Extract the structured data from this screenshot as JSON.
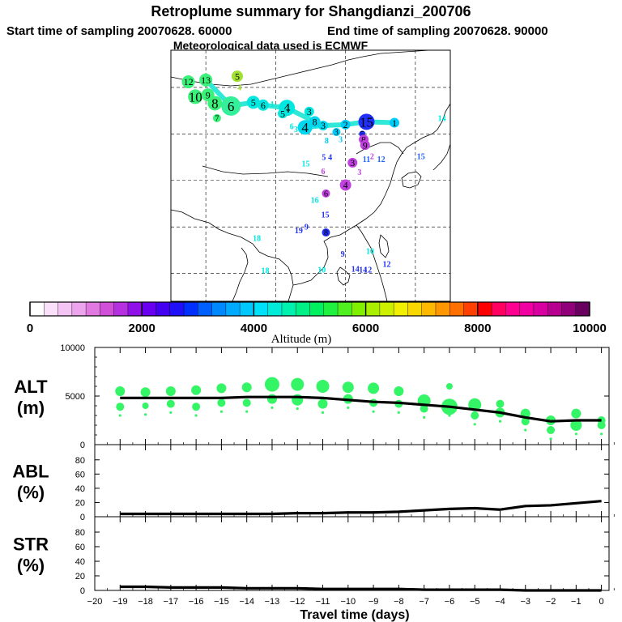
{
  "header": {
    "title": "Retroplume summary for Shangdianzi_200706",
    "start_label": "Start time of sampling 20070628. 60000",
    "end_label": "End time of sampling 20070628. 90000",
    "met_label": "Meteorological data used is ECMWF"
  },
  "colorbar": {
    "label": "Altitude (m)",
    "ticks": [
      "0",
      "2000",
      "4000",
      "6000",
      "8000",
      "10000"
    ],
    "colors": [
      "#ffffff",
      "#fbe0fb",
      "#f4c4f4",
      "#eca4ec",
      "#e07ae0",
      "#d050d8",
      "#b430e0",
      "#9010e8",
      "#6a00f0",
      "#4400f0",
      "#2010f8",
      "#0030ff",
      "#0060ff",
      "#0088ff",
      "#00aaff",
      "#00c8ff",
      "#00e0f8",
      "#00ecd8",
      "#00f0b0",
      "#00f088",
      "#00f060",
      "#20f040",
      "#50f020",
      "#80f000",
      "#a8f000",
      "#ccf000",
      "#f0f000",
      "#f8d800",
      "#ffb800",
      "#ff9800",
      "#ff7000",
      "#ff4000",
      "#ff0000",
      "#ff0060",
      "#ff0090",
      "#f000a0",
      "#d800a0",
      "#b80090",
      "#900078",
      "#6a0060"
    ]
  },
  "map": {
    "markers": [
      {
        "label": "12",
        "c": "#3af27a",
        "lat": 45.6,
        "lon": 77.5,
        "r": 8
      },
      {
        "label": "13",
        "c": "#3af27a",
        "lat": 45.8,
        "lon": 80.0,
        "r": 8
      },
      {
        "label": "10",
        "c": "#3af27a",
        "lat": 44.0,
        "lon": 78.5,
        "r": 9
      },
      {
        "label": "9",
        "c": "#3af27a",
        "lat": 44.2,
        "lon": 80.3,
        "r": 8
      },
      {
        "label": "8",
        "c": "#3af27a",
        "lat": 43.3,
        "lon": 81.3,
        "r": 9
      },
      {
        "label": "6",
        "c": "#34f09a",
        "lat": 43.0,
        "lon": 83.6,
        "r": 12
      },
      {
        "label": "7",
        "c": "#3af27a",
        "lat": 41.7,
        "lon": 81.6,
        "r": 5
      },
      {
        "label": "5",
        "c": "#9fe030",
        "lat": 46.2,
        "lon": 84.5,
        "r": 7
      },
      {
        "label": "4",
        "c": "#9fe030",
        "lat": 45.0,
        "lon": 84.8,
        "r": 0
      },
      {
        "label": "5",
        "c": "#00e8e0",
        "lat": 43.4,
        "lon": 86.8,
        "r": 8
      },
      {
        "label": "6",
        "c": "#00e8e0",
        "lat": 43.1,
        "lon": 88.2,
        "r": 7
      },
      {
        "label": "1",
        "c": "#00e8e0",
        "lat": 43.2,
        "lon": 89.5,
        "r": 0
      },
      {
        "label": "4",
        "c": "#00e8e0",
        "lat": 42.8,
        "lon": 91.6,
        "r": 10
      },
      {
        "label": "5",
        "c": "#00e8e0",
        "lat": 42.2,
        "lon": 91.0,
        "r": 6
      },
      {
        "label": "3",
        "c": "#00e8e0",
        "lat": 42.4,
        "lon": 94.8,
        "r": 6
      },
      {
        "label": "8",
        "c": "#00d8f0",
        "lat": 41.3,
        "lon": 95.6,
        "r": 7
      },
      {
        "label": "6",
        "c": "#00e8e0",
        "lat": 40.8,
        "lon": 92.3,
        "r": 0
      },
      {
        "label": "3",
        "c": "#00e8e0",
        "lat": 40.5,
        "lon": 92.9,
        "r": 0
      },
      {
        "label": "4",
        "c": "#00d8f0",
        "lat": 40.7,
        "lon": 94.2,
        "r": 9
      },
      {
        "label": "3",
        "c": "#00d8f0",
        "lat": 40.9,
        "lon": 96.8,
        "r": 6
      },
      {
        "label": "2",
        "c": "#00ccf8",
        "lat": 41.0,
        "lon": 100.0,
        "r": 6
      },
      {
        "label": "3",
        "c": "#00ccf8",
        "lat": 40.2,
        "lon": 98.7,
        "r": 5
      },
      {
        "label": "3",
        "c": "#00ccf8",
        "lat": 39.4,
        "lon": 99.3,
        "r": 0
      },
      {
        "label": "8",
        "c": "#00ccf8",
        "lat": 39.3,
        "lon": 97.3,
        "r": 0
      },
      {
        "label": "15",
        "c": "#2030f8",
        "lat": 41.3,
        "lon": 103.0,
        "r": 10
      },
      {
        "label": "1",
        "c": "#00ccf8",
        "lat": 41.2,
        "lon": 107.0,
        "r": 6
      },
      {
        "label": "14",
        "c": "#00e8e0",
        "lat": 41.7,
        "lon": 113.8,
        "r": 0
      },
      {
        "label": "5",
        "c": "#2030f8",
        "lat": 40.0,
        "lon": 102.4,
        "r": 4
      },
      {
        "label": "8",
        "c": "#c040e0",
        "lat": 39.4,
        "lon": 102.6,
        "r": 6
      },
      {
        "label": "9",
        "c": "#c040e0",
        "lat": 38.8,
        "lon": 102.8,
        "r": 6
      },
      {
        "label": "2",
        "c": "#c040e0",
        "lat": 37.6,
        "lon": 103.8,
        "r": 0
      },
      {
        "label": "11",
        "c": "#2060ff",
        "lat": 37.3,
        "lon": 103.0,
        "r": 0
      },
      {
        "label": "12",
        "c": "#2060ff",
        "lat": 37.3,
        "lon": 105.1,
        "r": 0
      },
      {
        "label": "15",
        "c": "#2060ff",
        "lat": 37.6,
        "lon": 110.8,
        "r": 0
      },
      {
        "label": "15",
        "c": "#00e8e0",
        "lat": 36.8,
        "lon": 94.3,
        "r": 0
      },
      {
        "label": "5",
        "c": "#2030f8",
        "lat": 37.5,
        "lon": 96.9,
        "r": 0
      },
      {
        "label": "4",
        "c": "#2030f8",
        "lat": 37.5,
        "lon": 97.8,
        "r": 0
      },
      {
        "label": "3",
        "c": "#c040e0",
        "lat": 36.9,
        "lon": 101.0,
        "r": 6
      },
      {
        "label": "3",
        "c": "#c040e0",
        "lat": 35.9,
        "lon": 102.0,
        "r": 0
      },
      {
        "label": "4",
        "c": "#c040e0",
        "lat": 34.5,
        "lon": 100.0,
        "r": 7
      },
      {
        "label": "6",
        "c": "#c040e0",
        "lat": 36.0,
        "lon": 96.8,
        "r": 0
      },
      {
        "label": "6",
        "c": "#c040e0",
        "lat": 33.6,
        "lon": 97.2,
        "r": 5
      },
      {
        "label": "16",
        "c": "#00e8e0",
        "lat": 32.9,
        "lon": 95.6,
        "r": 0
      },
      {
        "label": "15",
        "c": "#2030f8",
        "lat": 31.3,
        "lon": 97.1,
        "r": 0
      },
      {
        "label": "19",
        "c": "#2030f8",
        "lat": 29.6,
        "lon": 93.3,
        "r": 0
      },
      {
        "label": "9",
        "c": "#2030f8",
        "lat": 30.0,
        "lon": 94.4,
        "r": 0
      },
      {
        "label": "8",
        "c": "#2030f8",
        "lat": 29.4,
        "lon": 97.2,
        "r": 5
      },
      {
        "label": "18",
        "c": "#00e8e0",
        "lat": 28.8,
        "lon": 87.3,
        "r": 0
      },
      {
        "label": "18",
        "c": "#00e8e0",
        "lat": 25.3,
        "lon": 88.5,
        "r": 0
      },
      {
        "label": "10",
        "c": "#00e8e0",
        "lat": 25.4,
        "lon": 96.6,
        "r": 0
      },
      {
        "label": "9",
        "c": "#2030f8",
        "lat": 27.1,
        "lon": 99.6,
        "r": 0
      },
      {
        "label": "10",
        "c": "#00e8e0",
        "lat": 27.4,
        "lon": 103.5,
        "r": 0
      },
      {
        "label": "14",
        "c": "#2030f8",
        "lat": 25.5,
        "lon": 101.4,
        "r": 0
      },
      {
        "label": "14",
        "c": "#2030f8",
        "lat": 25.4,
        "lon": 102.5,
        "r": 0
      },
      {
        "label": "12",
        "c": "#2030f8",
        "lat": 25.4,
        "lon": 103.2,
        "r": 0
      },
      {
        "label": "12",
        "c": "#2030f8",
        "lat": 26.0,
        "lon": 105.9,
        "r": 0
      }
    ]
  },
  "chart_data": [
    {
      "type": "line",
      "name": "ALT",
      "ylabel": "ALT\n(m)",
      "ylim": [
        0,
        10000
      ],
      "yticks": [
        0,
        5000,
        10000
      ],
      "x": [
        -19,
        -18,
        -17,
        -16,
        -15,
        -14,
        -13,
        -12,
        -11,
        -10,
        -9,
        -8,
        -7,
        -6,
        -5,
        -4,
        -3,
        -2,
        -1,
        0
      ],
      "series": [
        {
          "name": "mean altitude",
          "values": [
            4800,
            4800,
            4800,
            4800,
            4800,
            4900,
            4900,
            4900,
            4800,
            4600,
            4400,
            4300,
            4100,
            3900,
            3600,
            3300,
            2800,
            2400,
            2500,
            2500
          ]
        }
      ],
      "clusters": [
        {
          "x": -19,
          "y": [
            5500,
            3900
          ],
          "r": [
            6,
            5
          ]
        },
        {
          "x": -18,
          "y": [
            5400,
            4000
          ],
          "r": [
            6,
            4
          ]
        },
        {
          "x": -17,
          "y": [
            5500,
            4200
          ],
          "r": [
            6,
            5
          ]
        },
        {
          "x": -16,
          "y": [
            5600,
            3900
          ],
          "r": [
            6,
            5
          ]
        },
        {
          "x": -15,
          "y": [
            5800,
            4300
          ],
          "r": [
            6,
            5
          ]
        },
        {
          "x": -14,
          "y": [
            5900,
            4300
          ],
          "r": [
            6,
            5
          ]
        },
        {
          "x": -13,
          "y": [
            6200,
            4700
          ],
          "r": [
            9,
            6
          ]
        },
        {
          "x": -12,
          "y": [
            6200,
            4600
          ],
          "r": [
            8,
            7
          ]
        },
        {
          "x": -11,
          "y": [
            6000,
            4200
          ],
          "r": [
            8,
            6
          ]
        },
        {
          "x": -10,
          "y": [
            5900,
            4700
          ],
          "r": [
            7,
            6
          ]
        },
        {
          "x": -9,
          "y": [
            5800,
            4300
          ],
          "r": [
            7,
            5
          ]
        },
        {
          "x": -8,
          "y": [
            5500,
            4200
          ],
          "r": [
            6,
            5
          ]
        },
        {
          "x": -7,
          "y": [
            4500,
            3700
          ],
          "r": [
            8,
            5
          ]
        },
        {
          "x": -6,
          "y": [
            3900,
            6000
          ],
          "r": [
            10,
            4
          ]
        },
        {
          "x": -5,
          "y": [
            4100,
            3000
          ],
          "r": [
            8,
            5
          ]
        },
        {
          "x": -4,
          "y": [
            3300,
            4200
          ],
          "r": [
            6,
            5
          ]
        },
        {
          "x": -3,
          "y": [
            3200,
            2400
          ],
          "r": [
            6,
            5
          ]
        },
        {
          "x": -2,
          "y": [
            2500,
            1500
          ],
          "r": [
            6,
            5
          ]
        },
        {
          "x": -1,
          "y": [
            3200,
            2000
          ],
          "r": [
            6,
            7
          ]
        },
        {
          "x": 0,
          "y": [
            2500,
            2000
          ],
          "r": [
            5,
            5
          ]
        }
      ]
    },
    {
      "type": "line",
      "name": "ABL",
      "ylabel": "ABL\n(%)",
      "ylim": [
        0,
        90
      ],
      "yticks": [
        0,
        20,
        40,
        60,
        80
      ],
      "x": [
        -19,
        -18,
        -17,
        -16,
        -15,
        -14,
        -13,
        -12,
        -11,
        -10,
        -9,
        -8,
        -7,
        -6,
        -5,
        -4,
        -3,
        -2,
        -1,
        0
      ],
      "series": [
        {
          "name": "ABL",
          "values": [
            4,
            4,
            4,
            4,
            4,
            4,
            4,
            5,
            5,
            6,
            6,
            7,
            9,
            11,
            12,
            10,
            15,
            16,
            19,
            22
          ]
        }
      ]
    },
    {
      "type": "line",
      "name": "STR",
      "ylabel": "STR\n(%)",
      "ylim": [
        0,
        90
      ],
      "yticks": [
        0,
        20,
        40,
        60,
        80
      ],
      "x": [
        -19,
        -18,
        -17,
        -16,
        -15,
        -14,
        -13,
        -12,
        -11,
        -10,
        -9,
        -8,
        -7,
        -6,
        -5,
        -4,
        -3,
        -2,
        -1,
        0
      ],
      "series": [
        {
          "name": "STR",
          "values": [
            5,
            5,
            4,
            4,
            4,
            3,
            3,
            3,
            2,
            2,
            2,
            2,
            1,
            1,
            1,
            1,
            0,
            0,
            0,
            0
          ]
        }
      ]
    }
  ],
  "xaxis": {
    "label": "Travel time (days)",
    "ticks": [
      -20,
      -19,
      -18,
      -17,
      -16,
      -15,
      -14,
      -13,
      -12,
      -11,
      -10,
      -9,
      -8,
      -7,
      -6,
      -5,
      -4,
      -3,
      -2,
      -1,
      0
    ]
  }
}
